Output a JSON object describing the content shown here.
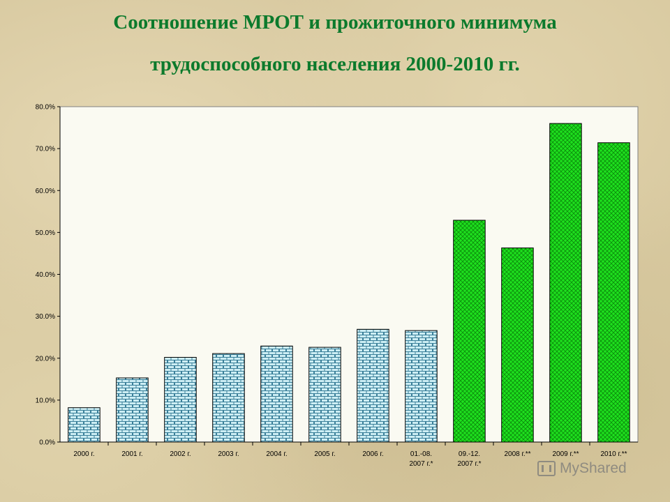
{
  "title": {
    "line1": "Соотношение МРОТ и прожиточного минимума",
    "line2": "трудоспособного населения 2000-2010 гг."
  },
  "chart_data": {
    "type": "bar",
    "title": "Соотношение МРОТ и прожиточного минимума трудоспособного населения 2000-2010 гг.",
    "xlabel": "",
    "ylabel": "",
    "ylim": [
      0,
      80
    ],
    "yticks": [
      "0.0%",
      "10.0%",
      "20.0%",
      "30.0%",
      "40.0%",
      "50.0%",
      "60.0%",
      "70.0%",
      "80.0%"
    ],
    "grid": false,
    "legend": "none",
    "categories": [
      [
        "2000 г."
      ],
      [
        "2001 г."
      ],
      [
        "2002 г."
      ],
      [
        "2003 г."
      ],
      [
        "2004 г."
      ],
      [
        "2005 г."
      ],
      [
        "2006 г."
      ],
      [
        "01.-08.",
        "2007 г.*"
      ],
      [
        "09.-12.",
        "2007 г.*"
      ],
      [
        "2008 г.**"
      ],
      [
        "2009 г.**"
      ],
      [
        "2010 г.**"
      ]
    ],
    "values": [
      8.2,
      15.3,
      20.2,
      21.1,
      22.9,
      22.6,
      26.9,
      26.6,
      52.9,
      46.3,
      76.0,
      71.4
    ],
    "bar_styles": [
      "brick",
      "brick",
      "brick",
      "brick",
      "brick",
      "brick",
      "brick",
      "brick",
      "crosshatch",
      "crosshatch",
      "crosshatch",
      "crosshatch"
    ],
    "colors": {
      "brick_fill": "#cdeef4",
      "brick_line": "#3a7f99",
      "cross_fill": "#1ee01e",
      "cross_line": "#0b8a0b"
    }
  },
  "watermark": {
    "text": "MyShared",
    "icon": "myshared-logo-icon"
  }
}
